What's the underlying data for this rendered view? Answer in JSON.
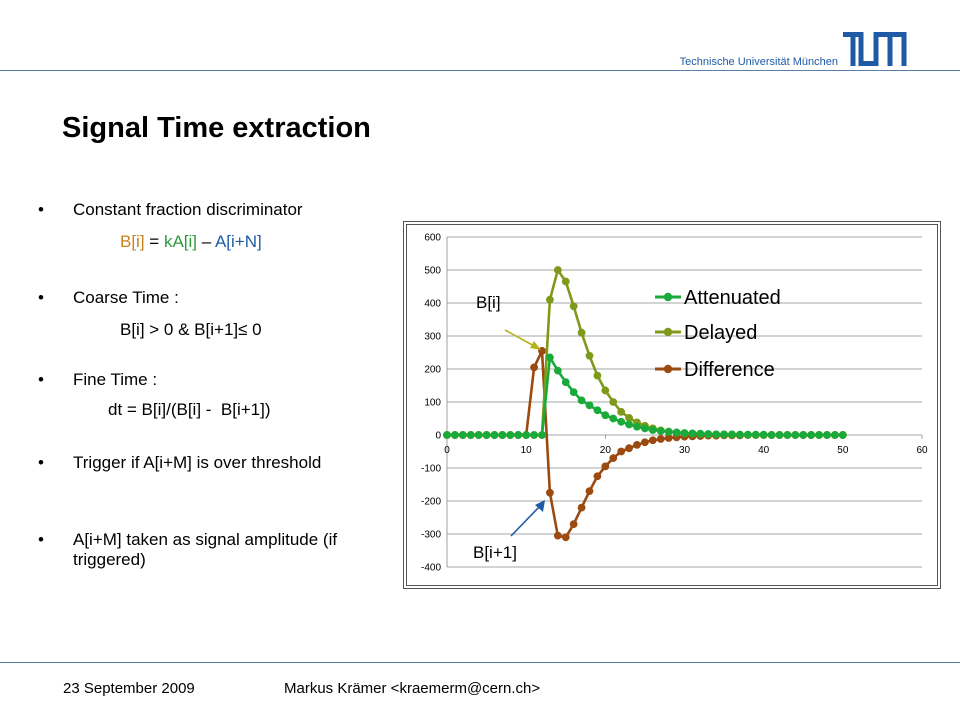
{
  "header": {
    "university": "Technische Universität München",
    "logo_text": "TUM"
  },
  "slide": {
    "title": "Signal Time extraction",
    "bullets": [
      {
        "text": "Constant fraction discriminator"
      },
      {
        "text": "Coarse Time :"
      },
      {
        "text": "Fine Time :"
      },
      {
        "text": "Trigger if A[i+M] is over threshold"
      },
      {
        "text": "A[i+M] taken as signal amplitude (if triggered)"
      }
    ],
    "cfd_formula": {
      "b": "B[i]",
      "eq": " = ",
      "ka": "kA[i]",
      "minus": " – ",
      "a": "A[i+N]"
    },
    "coarse_formula": "B[i] > 0 & B[i+1]≤ 0",
    "fine_formula": "dt = B[i]/(B[i] -  B[i+1])",
    "annotation_bi": "B[i]",
    "annotation_bi1": "B[i+1]"
  },
  "footer": {
    "date": "23 September 2009",
    "author": "Markus Krämer <kraemerm@cern.ch>"
  },
  "colors": {
    "attenuated": "#1aaa3a",
    "delayed": "#7f9a1a",
    "difference": "#9b4a10",
    "accent_blue": "#1f5aa6"
  },
  "chart_data": {
    "type": "line",
    "xlim": [
      0,
      60
    ],
    "ylim": [
      -400,
      600
    ],
    "xticks": [
      0,
      10,
      20,
      30,
      40,
      50,
      60
    ],
    "yticks": [
      600,
      500,
      400,
      300,
      200,
      100,
      0,
      -100,
      -200,
      -300,
      -400
    ],
    "grid": "horizontal",
    "legend_position": "right",
    "series": [
      {
        "name": "Attenuated",
        "color": "#1aaa3a",
        "x": [
          0,
          1,
          2,
          3,
          4,
          5,
          6,
          7,
          8,
          9,
          10,
          11,
          12,
          13,
          14,
          15,
          16,
          17,
          18,
          19,
          20,
          21,
          22,
          23,
          24,
          25,
          26,
          27,
          28,
          29,
          30,
          31,
          32,
          33,
          34,
          35,
          36,
          37,
          38,
          39,
          40,
          41,
          42,
          43,
          44,
          45,
          46,
          47,
          48,
          49,
          50
        ],
        "y": [
          0,
          0,
          0,
          0,
          0,
          0,
          0,
          0,
          0,
          0,
          0,
          0,
          0,
          235,
          195,
          160,
          130,
          105,
          90,
          75,
          60,
          50,
          40,
          32,
          25,
          20,
          15,
          12,
          10,
          8,
          6,
          5,
          4,
          3,
          2,
          2,
          2,
          1,
          1,
          1,
          1,
          0,
          0,
          0,
          0,
          0,
          0,
          0,
          0,
          0,
          0
        ]
      },
      {
        "name": "Delayed",
        "color": "#7f9a1a",
        "x": [
          0,
          1,
          2,
          3,
          4,
          5,
          6,
          7,
          8,
          9,
          10,
          11,
          12,
          13,
          14,
          15,
          16,
          17,
          18,
          19,
          20,
          21,
          22,
          23,
          24,
          25,
          26,
          27,
          28,
          29,
          30,
          31,
          32,
          33,
          34,
          35,
          36,
          37,
          38,
          39,
          40,
          41,
          42,
          43,
          44,
          45,
          46,
          47,
          48,
          49,
          50
        ],
        "y": [
          0,
          0,
          0,
          0,
          0,
          0,
          0,
          0,
          0,
          0,
          0,
          0,
          0,
          410,
          500,
          465,
          390,
          310,
          240,
          180,
          135,
          100,
          70,
          52,
          38,
          28,
          20,
          14,
          10,
          7,
          5,
          4,
          3,
          2,
          2,
          1,
          1,
          1,
          0,
          0,
          0,
          0,
          0,
          0,
          0,
          0,
          0,
          0,
          0,
          0,
          0
        ]
      },
      {
        "name": "Difference",
        "color": "#9b4a10",
        "x": [
          0,
          1,
          2,
          3,
          4,
          5,
          6,
          7,
          8,
          9,
          10,
          11,
          12,
          13,
          14,
          15,
          16,
          17,
          18,
          19,
          20,
          21,
          22,
          23,
          24,
          25,
          26,
          27,
          28,
          29,
          30,
          31,
          32,
          33,
          34,
          35,
          36,
          37,
          38,
          39,
          40,
          41,
          42,
          43,
          44,
          45,
          46,
          47,
          48,
          49,
          50
        ],
        "y": [
          0,
          0,
          0,
          0,
          0,
          0,
          0,
          0,
          0,
          0,
          0,
          205,
          255,
          -175,
          -305,
          -310,
          -270,
          -220,
          -170,
          -125,
          -95,
          -70,
          -50,
          -40,
          -30,
          -22,
          -16,
          -12,
          -9,
          -7,
          -5,
          -4,
          -3,
          -2,
          -2,
          -1,
          -1,
          -1,
          0,
          0,
          0,
          0,
          0,
          0,
          0,
          0,
          0,
          0,
          0,
          0,
          0
        ]
      }
    ]
  }
}
